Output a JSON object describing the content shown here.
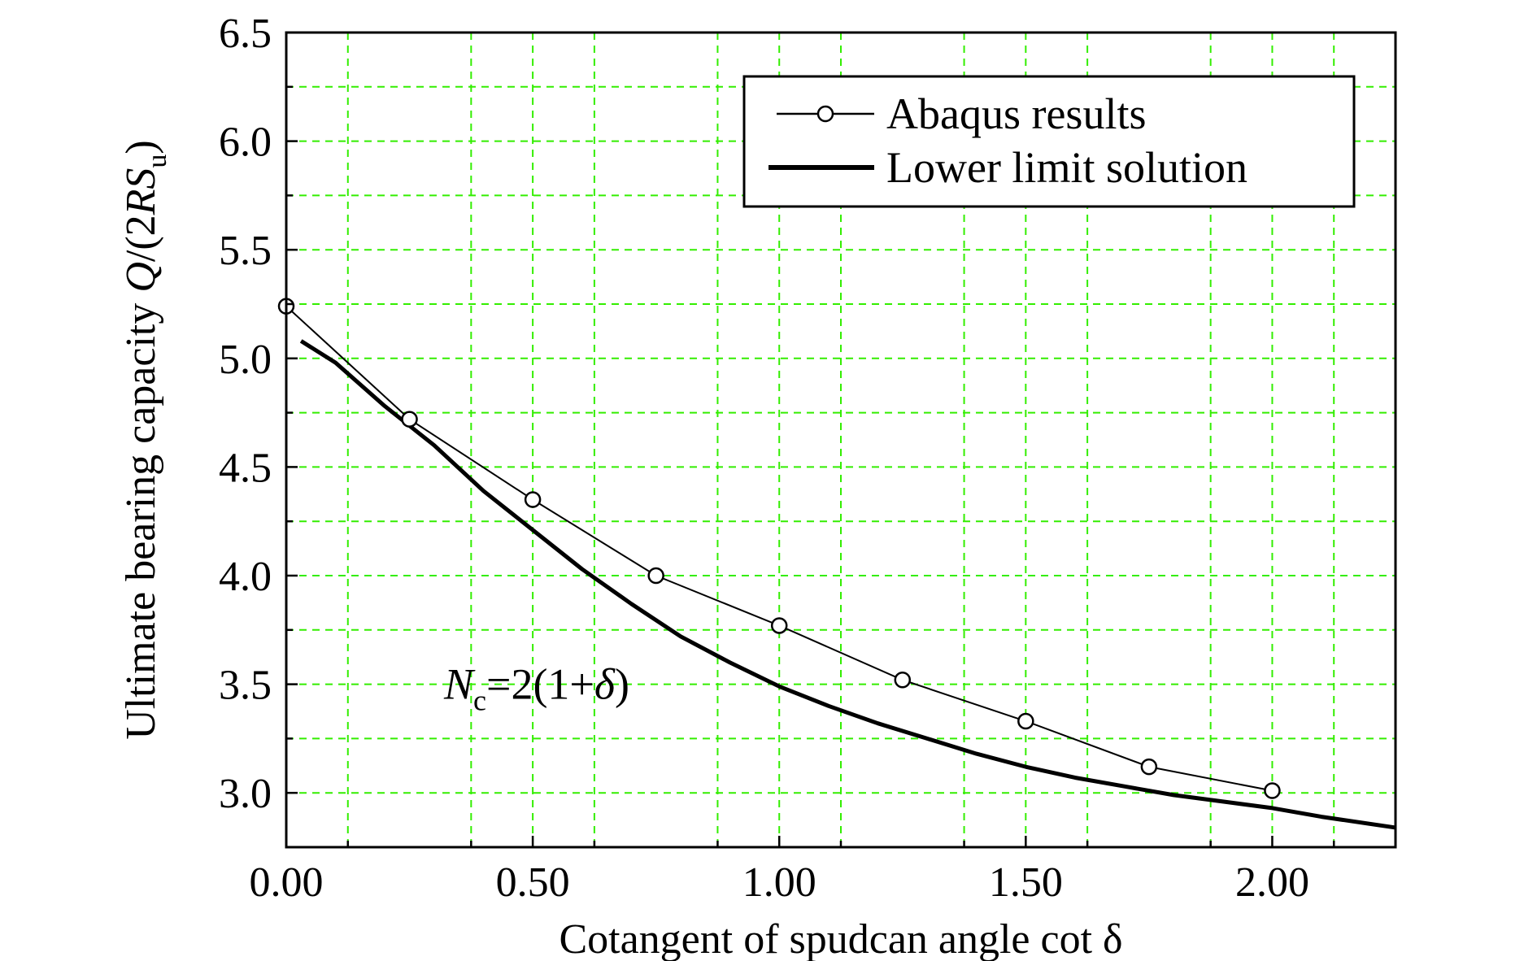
{
  "chart_data": {
    "type": "line",
    "xlabel": "Cotangent of spudcan angle cot δ",
    "ylabel_prefix": "Ultimate bearing capacity ",
    "ylabel_q": "Q",
    "ylabel_mid": "/(2",
    "ylabel_r": "R",
    "ylabel_s": "S",
    "ylabel_sub": "u",
    "ylabel_end": ")",
    "xlim": [
      0,
      2.25
    ],
    "ylim": [
      2.75,
      6.5
    ],
    "x_ticks": [
      "0.00",
      "0.50",
      "1.00",
      "1.50",
      "2.00"
    ],
    "x_tick_values": [
      0,
      0.5,
      1.0,
      1.5,
      2.0
    ],
    "y_ticks": [
      "3.0",
      "3.5",
      "4.0",
      "4.5",
      "5.0",
      "5.5",
      "6.0",
      "6.5"
    ],
    "y_tick_values": [
      3.0,
      3.5,
      4.0,
      4.5,
      5.0,
      5.5,
      6.0,
      6.5
    ],
    "grid": true,
    "grid_color": "#33ee00",
    "x_grid": [
      0.125,
      0.375,
      0.625,
      0.875,
      1.125,
      1.375,
      1.625,
      1.875,
      2.125
    ],
    "y_grid": [
      3.25,
      3.75,
      4.25,
      4.75,
      5.25,
      5.75,
      6.25
    ],
    "legend_position": "top-right",
    "series": [
      {
        "name": "Abaqus results",
        "style": "thin line with open circle markers",
        "x": [
          0.0,
          0.25,
          0.5,
          0.75,
          1.0,
          1.25,
          1.5,
          1.75,
          2.0
        ],
        "values": [
          5.24,
          4.72,
          4.35,
          4.0,
          3.77,
          3.52,
          3.33,
          3.12,
          3.01
        ]
      },
      {
        "name": "Lower limit solution",
        "style": "thick solid line",
        "x": [
          0.03,
          0.1,
          0.2,
          0.3,
          0.4,
          0.5,
          0.6,
          0.7,
          0.8,
          0.9,
          1.0,
          1.1,
          1.2,
          1.3,
          1.4,
          1.5,
          1.6,
          1.7,
          1.8,
          1.9,
          2.0,
          2.1,
          2.25
        ],
        "values": [
          5.08,
          4.98,
          4.78,
          4.6,
          4.39,
          4.21,
          4.03,
          3.87,
          3.72,
          3.6,
          3.49,
          3.4,
          3.32,
          3.25,
          3.18,
          3.12,
          3.07,
          3.03,
          2.99,
          2.96,
          2.93,
          2.89,
          2.84
        ]
      }
    ],
    "annotation": {
      "n": "N",
      "sub": "c",
      "rest": "=2(1+",
      "delta": "δ",
      "close": ")",
      "x": 0.32,
      "y": 3.5
    }
  }
}
